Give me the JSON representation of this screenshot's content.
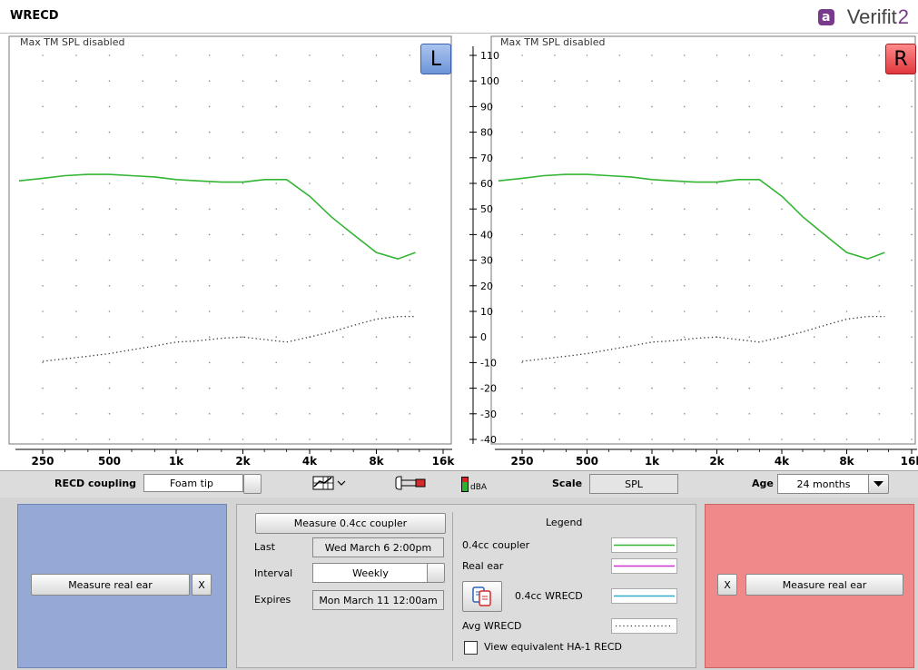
{
  "window": {
    "title": "WRECD",
    "brand_name": "Verifit",
    "brand_suffix": "2",
    "brand_logo": "a"
  },
  "graphs": {
    "left": {
      "note": "Max TM SPL disabled",
      "ear_label": "L"
    },
    "right": {
      "note": "Max TM SPL disabled",
      "ear_label": "R"
    }
  },
  "y_axis": {
    "ticks": [
      "110",
      "100",
      "90",
      "80",
      "70",
      "60",
      "50",
      "40",
      "30",
      "20",
      "10",
      "0",
      "-10",
      "-20",
      "-30",
      "-40"
    ]
  },
  "x_axis": {
    "ticks": [
      "250",
      "500",
      "1k",
      "2k",
      "4k",
      "8k",
      "16k"
    ]
  },
  "chart_data": [
    {
      "type": "line",
      "ear": "left",
      "ylim": [
        -40,
        110
      ],
      "xlim": [
        200,
        16000
      ],
      "x_scale": "log",
      "series": [
        {
          "name": "0.4cc coupler",
          "color": "#33b533",
          "style": "solid",
          "x": [
            200,
            250,
            315,
            400,
            500,
            630,
            800,
            1000,
            1250,
            1600,
            2000,
            2500,
            3150,
            4000,
            5000,
            6300,
            8000,
            10000,
            12000
          ],
          "y": [
            61,
            62,
            63,
            63.5,
            63.5,
            63,
            62.5,
            61.5,
            61,
            60.5,
            60.5,
            61.5,
            61.5,
            55,
            47,
            40,
            33,
            30.5,
            33
          ]
        },
        {
          "name": "Avg WRECD",
          "color": "#333333",
          "style": "dotted",
          "x": [
            250,
            315,
            400,
            500,
            630,
            800,
            1000,
            1250,
            1600,
            2000,
            2500,
            3150,
            4000,
            5000,
            6300,
            8000,
            10000,
            12000
          ],
          "y": [
            -9.5,
            -8.5,
            -7.5,
            -6.5,
            -5,
            -3.5,
            -2,
            -1.5,
            -0.5,
            0,
            -1,
            -2,
            0,
            2,
            4.5,
            7,
            8,
            8
          ]
        }
      ]
    },
    {
      "type": "line",
      "ear": "right",
      "ylim": [
        -40,
        110
      ],
      "xlim": [
        200,
        16000
      ],
      "x_scale": "log",
      "series": [
        {
          "name": "0.4cc coupler",
          "color": "#33b533",
          "style": "solid",
          "x": [
            200,
            250,
            315,
            400,
            500,
            630,
            800,
            1000,
            1250,
            1600,
            2000,
            2500,
            3150,
            4000,
            5000,
            6300,
            8000,
            10000,
            12000
          ],
          "y": [
            61,
            62,
            63,
            63.5,
            63.5,
            63,
            62.5,
            61.5,
            61,
            60.5,
            60.5,
            61.5,
            61.5,
            55,
            47,
            40,
            33,
            30.5,
            33
          ]
        },
        {
          "name": "Avg WRECD",
          "color": "#333333",
          "style": "dotted",
          "x": [
            250,
            315,
            400,
            500,
            630,
            800,
            1000,
            1250,
            1600,
            2000,
            2500,
            3150,
            4000,
            5000,
            6300,
            8000,
            10000,
            12000
          ],
          "y": [
            -9.5,
            -8.5,
            -7.5,
            -6.5,
            -5,
            -3.5,
            -2,
            -1.5,
            -0.5,
            0,
            -1,
            -2,
            0,
            2,
            4.5,
            7,
            8,
            8
          ]
        }
      ]
    }
  ],
  "toolbar": {
    "coupling_label": "RECD coupling",
    "coupling_value": "Foam tip",
    "dba_label": "dBA",
    "scale_label": "Scale",
    "scale_value": "SPL",
    "age_label": "Age",
    "age_value": "24 months",
    "icons": [
      "graph-view-icon",
      "probe-tube-icon",
      "dba-meter-icon",
      "dropdown-arrow-icon"
    ]
  },
  "left_panel": {
    "measure_button": "Measure real ear",
    "clear_button": "X",
    "color": "#95a9d6"
  },
  "right_panel": {
    "measure_button": "Measure real ear",
    "clear_button": "X",
    "color": "#f08a8a"
  },
  "coupler": {
    "measure_button": "Measure 0.4cc coupler",
    "last_label": "Last",
    "last_value": "Wed March 6 2:00pm",
    "interval_label": "Interval",
    "interval_value": "Weekly",
    "expires_label": "Expires",
    "expires_value": "Mon March 11 12:00am"
  },
  "legend": {
    "title": "Legend",
    "items": [
      {
        "label": "0.4cc coupler",
        "color": "#33b533",
        "style": "solid"
      },
      {
        "label": "Real ear",
        "color": "#cc33cc",
        "style": "solid"
      },
      {
        "label": "0.4cc WRECD",
        "color": "#33aacc",
        "style": "solid"
      },
      {
        "label": "Avg WRECD",
        "color": "#333333",
        "style": "dotted"
      }
    ],
    "checkbox_label": "View equivalent HA-1 RECD",
    "checkbox_checked": false
  }
}
